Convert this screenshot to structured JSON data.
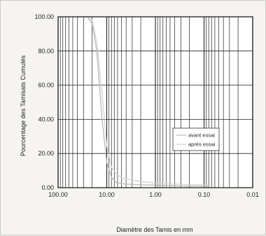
{
  "chart_data": {
    "type": "line",
    "xscale": "log",
    "xaxis_reversed": true,
    "xlabel": "Diamètre des Tamis en mm",
    "ylabel": "Pourcentage des Tamisats Cumulés",
    "xlim": [
      100,
      0.01
    ],
    "ylim": [
      0,
      100
    ],
    "x_tick_labels": [
      "100.00",
      "10.00",
      "1.00",
      "0.10",
      "0.01"
    ],
    "x_tick_values": [
      100,
      10,
      1,
      0.1,
      0.01
    ],
    "y_tick_labels": [
      "0.00",
      "20.00",
      "40.00",
      "60.00",
      "80.00",
      "100.00"
    ],
    "y_tick_values": [
      0,
      20,
      40,
      60,
      80,
      100
    ],
    "grid": true,
    "legend_position": "right",
    "series": [
      {
        "name": "avant essai",
        "color": "#b8b8b8",
        "x": [
          40,
          31.5,
          25,
          20,
          16,
          12.5,
          10,
          8,
          6.3,
          5,
          4,
          3.15,
          2.5,
          2,
          1.6,
          1.25,
          1,
          0.8,
          0.63,
          0.5,
          0.4,
          0.315,
          0.2,
          0.1,
          0.08
        ],
        "y": [
          100,
          100,
          100,
          96,
          80,
          40,
          15,
          6,
          3,
          2.5,
          2,
          2,
          1.8,
          1.7,
          1.6,
          1.5,
          1.5,
          1.4,
          1.3,
          1.2,
          1.1,
          1,
          0.9,
          0.8,
          0.7
        ]
      },
      {
        "name": "après essai",
        "color": "#d2d2d2",
        "x": [
          40,
          31.5,
          25,
          20,
          16,
          12.5,
          10,
          8,
          6.3,
          5,
          4,
          3.15,
          2.5,
          2,
          1.6,
          1.25,
          1,
          0.8,
          0.63,
          0.5,
          0.4,
          0.315,
          0.2,
          0.1,
          0.08
        ],
        "y": [
          100,
          100,
          100,
          98,
          85,
          55,
          25,
          12,
          8,
          6,
          5,
          4.5,
          4,
          3.6,
          3.3,
          3,
          2.8,
          2.6,
          2.4,
          2.2,
          2.1,
          2,
          1.8,
          1.6,
          1.5
        ]
      }
    ]
  }
}
